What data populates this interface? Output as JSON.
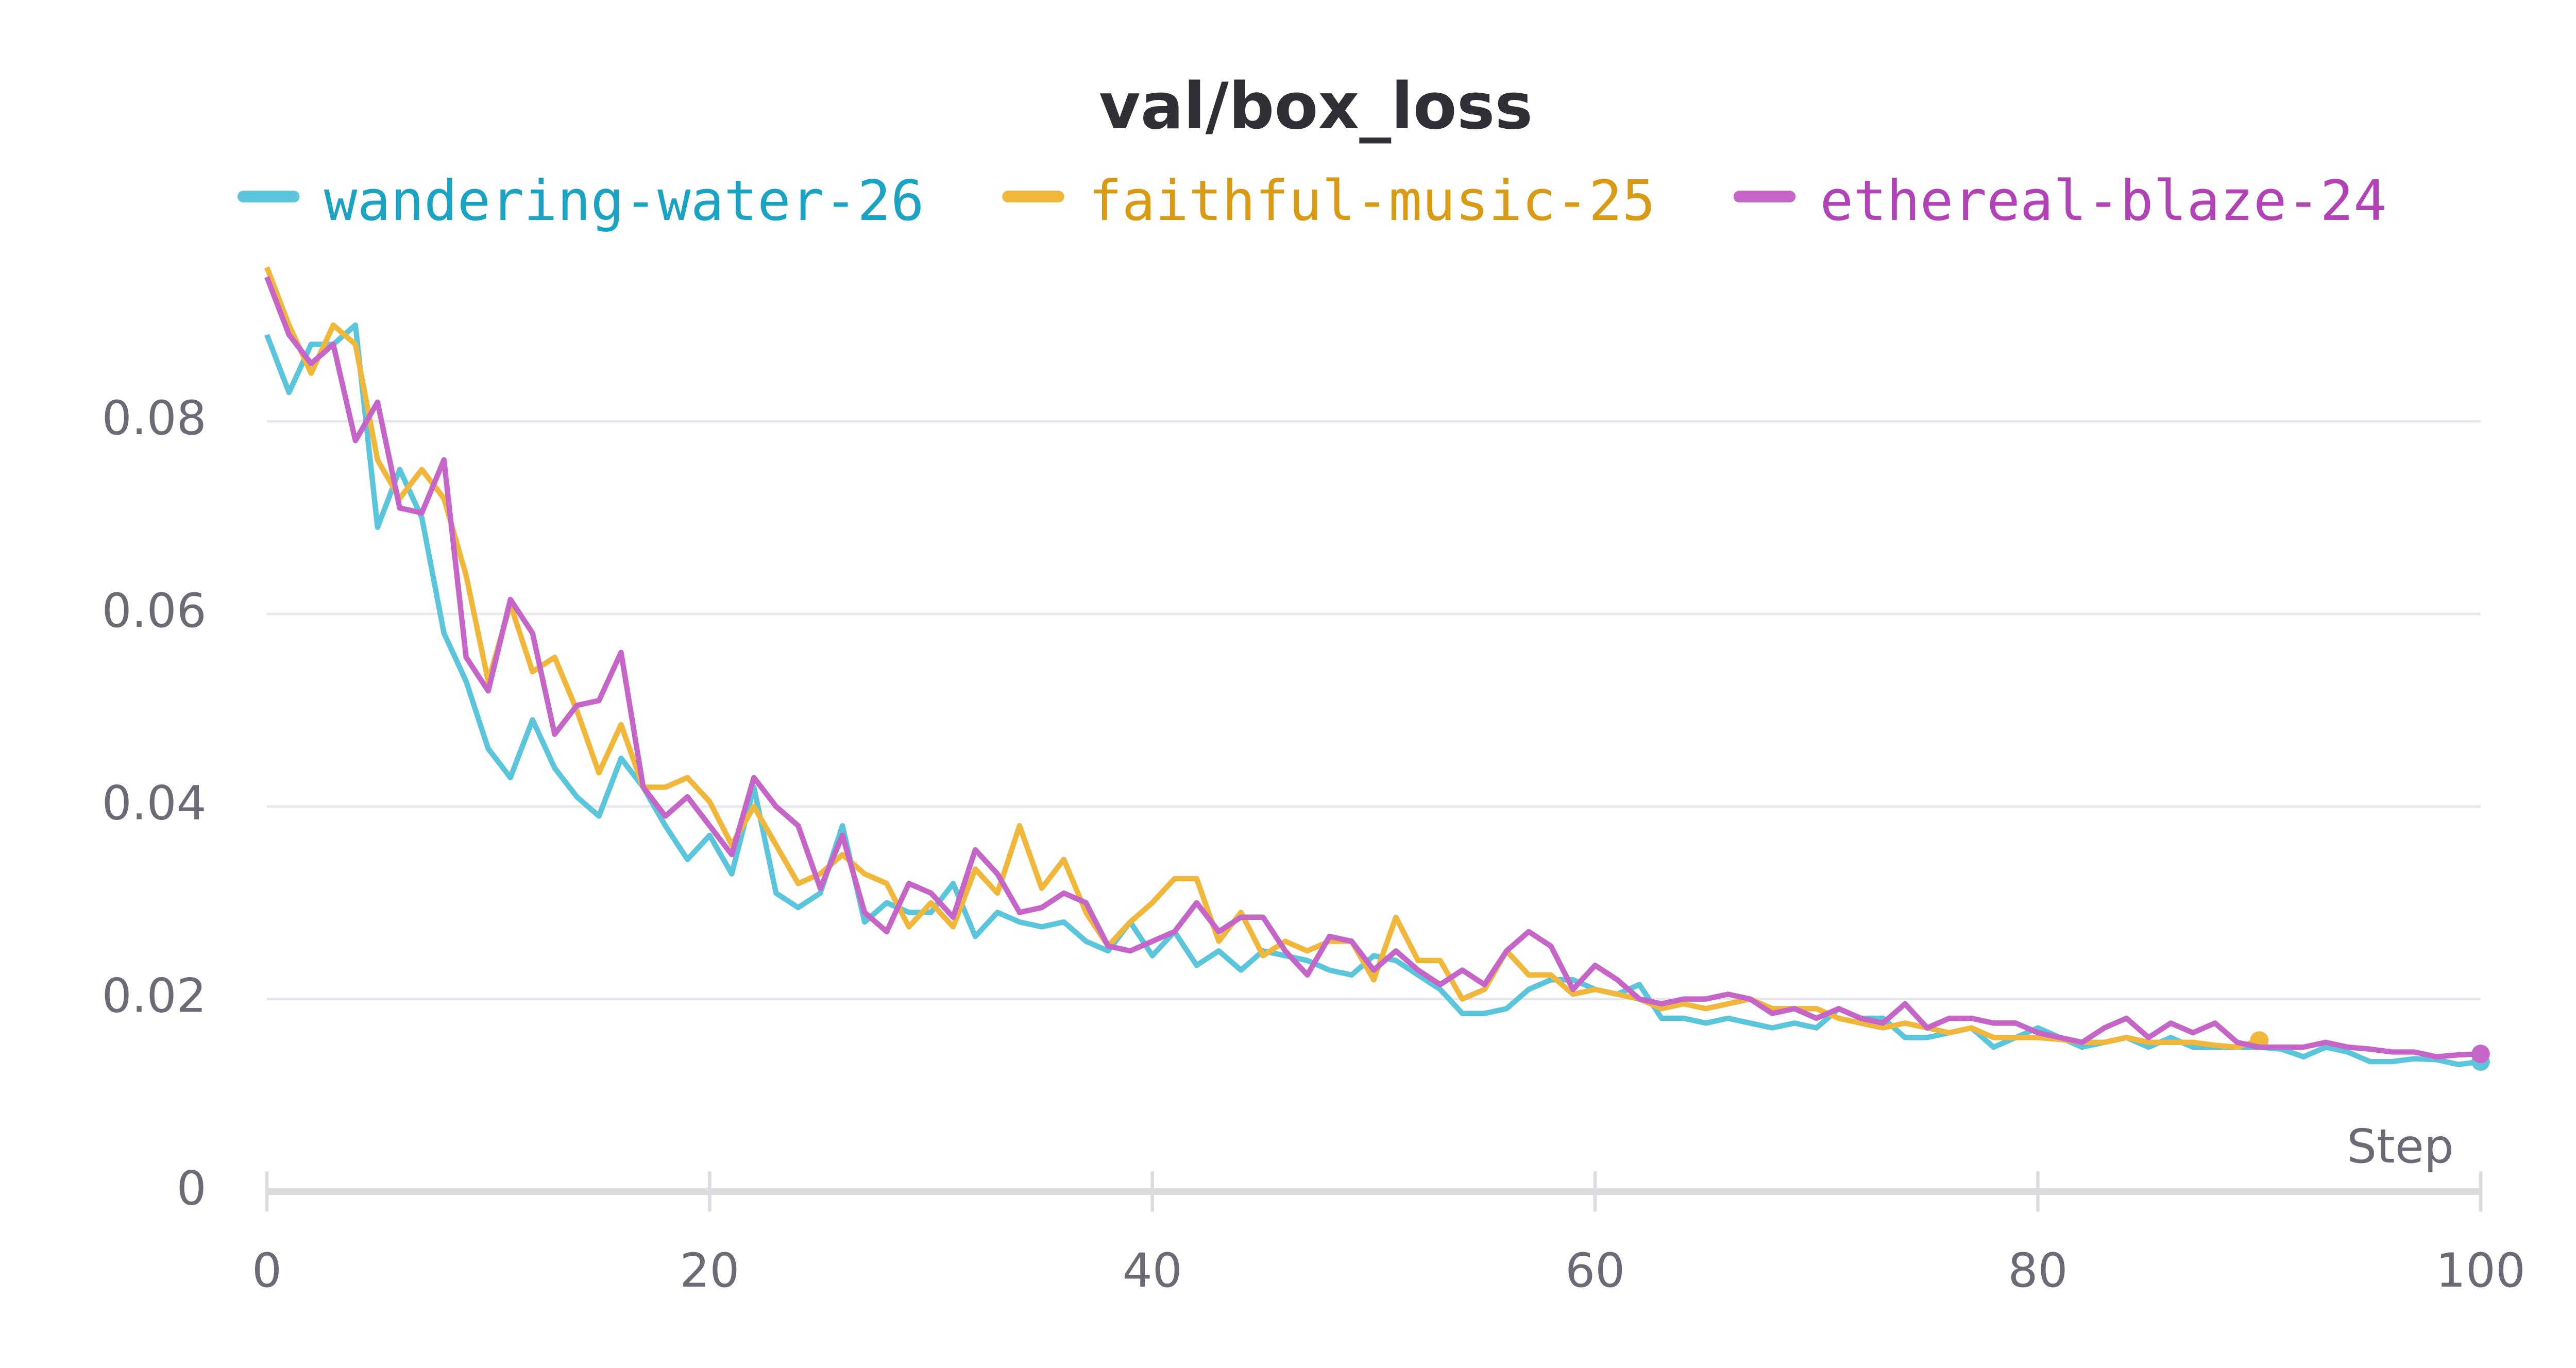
{
  "chart_data": {
    "type": "line",
    "title": "val/box_loss",
    "x_label": "Step",
    "x": [
      0,
      1,
      2,
      3,
      4,
      5,
      6,
      7,
      8,
      9,
      10,
      11,
      12,
      13,
      14,
      15,
      16,
      17,
      18,
      19,
      20,
      21,
      22,
      23,
      24,
      25,
      26,
      27,
      28,
      29,
      30,
      31,
      32,
      33,
      34,
      35,
      36,
      37,
      38,
      39,
      40,
      41,
      42,
      43,
      44,
      45,
      46,
      47,
      48,
      49,
      50,
      51,
      52,
      53,
      54,
      55,
      56,
      57,
      58,
      59,
      60,
      61,
      62,
      63,
      64,
      65,
      66,
      67,
      68,
      69,
      70,
      71,
      72,
      73,
      74,
      75,
      76,
      77,
      78,
      79,
      80,
      81,
      82,
      83,
      84,
      85,
      86,
      87,
      88,
      89,
      90,
      91,
      92,
      93,
      94,
      95,
      96,
      97,
      98,
      99,
      100
    ],
    "xlim": [
      0,
      100
    ],
    "xticks": [
      0,
      20,
      40,
      60,
      80,
      100
    ],
    "ylim": [
      0,
      0.0976
    ],
    "yticks": [
      0,
      0.02,
      0.04,
      0.06,
      0.08
    ],
    "grid": true,
    "series": [
      {
        "name": "wandering-water-26",
        "color": "#5bc5db",
        "label_color": "#1ba3c4",
        "values": [
          0.089,
          0.083,
          0.088,
          0.088,
          0.09,
          0.069,
          0.075,
          0.07,
          0.058,
          0.053,
          0.046,
          0.043,
          0.049,
          0.044,
          0.041,
          0.039,
          0.045,
          0.042,
          0.038,
          0.0345,
          0.037,
          0.033,
          0.042,
          0.031,
          0.0295,
          0.031,
          0.038,
          0.028,
          0.03,
          0.029,
          0.029,
          0.032,
          0.0265,
          0.029,
          0.028,
          0.0275,
          0.028,
          0.026,
          0.025,
          0.028,
          0.0245,
          0.027,
          0.0235,
          0.025,
          0.023,
          0.025,
          0.0245,
          0.024,
          0.023,
          0.0225,
          0.0245,
          0.024,
          0.0225,
          0.021,
          0.0185,
          0.0185,
          0.019,
          0.021,
          0.022,
          0.022,
          0.021,
          0.0205,
          0.0215,
          0.018,
          0.018,
          0.0175,
          0.018,
          0.0175,
          0.017,
          0.0175,
          0.017,
          0.019,
          0.018,
          0.018,
          0.016,
          0.016,
          0.0165,
          0.017,
          0.015,
          0.016,
          0.017,
          0.016,
          0.015,
          0.0155,
          0.016,
          0.015,
          0.016,
          0.015,
          0.015,
          0.015,
          0.015,
          0.0148,
          0.014,
          0.015,
          0.0145,
          0.0135,
          0.0135,
          0.0138,
          0.0137,
          0.0132,
          0.0135
        ]
      },
      {
        "name": "faithful-music-25",
        "color": "#f0b73a",
        "label_color": "#d99a14",
        "values": [
          0.096,
          0.09,
          0.085,
          0.09,
          0.088,
          0.076,
          0.072,
          0.075,
          0.072,
          0.064,
          0.053,
          0.061,
          0.054,
          0.0555,
          0.05,
          0.0435,
          0.0485,
          0.042,
          0.042,
          0.043,
          0.0405,
          0.036,
          0.04,
          0.036,
          0.032,
          0.033,
          0.035,
          0.033,
          0.032,
          0.0275,
          0.03,
          0.0275,
          0.0335,
          0.031,
          0.038,
          0.0315,
          0.0345,
          0.029,
          0.0255,
          0.028,
          0.03,
          0.0325,
          0.0325,
          0.026,
          0.029,
          0.0245,
          0.026,
          0.025,
          0.026,
          0.026,
          0.022,
          0.0285,
          0.024,
          0.024,
          0.02,
          0.021,
          0.025,
          0.0225,
          0.0225,
          0.0205,
          0.021,
          0.0205,
          0.02,
          0.019,
          0.0195,
          0.019,
          0.0195,
          0.02,
          0.019,
          0.019,
          0.019,
          0.018,
          0.0175,
          0.017,
          0.0175,
          0.017,
          0.0165,
          0.017,
          0.016,
          0.016,
          0.016,
          0.0158,
          0.0155,
          0.0155,
          0.016,
          0.0155,
          0.0155,
          0.0155,
          0.0152,
          0.015,
          0.0157,
          null,
          null,
          null,
          null,
          null,
          null,
          null,
          null,
          null,
          null
        ]
      },
      {
        "name": "ethereal-blaze-24",
        "color": "#c565c7",
        "label_color": "#b243b6",
        "values": [
          0.095,
          0.089,
          0.086,
          0.088,
          0.078,
          0.082,
          0.071,
          0.0705,
          0.076,
          0.0555,
          0.052,
          0.0615,
          0.058,
          0.0475,
          0.0505,
          0.051,
          0.056,
          0.042,
          0.039,
          0.041,
          0.038,
          0.035,
          0.043,
          0.04,
          0.038,
          0.0315,
          0.037,
          0.029,
          0.027,
          0.032,
          0.031,
          0.0285,
          0.0355,
          0.033,
          0.029,
          0.0295,
          0.031,
          0.03,
          0.0255,
          0.025,
          0.026,
          0.027,
          0.03,
          0.027,
          0.0285,
          0.0285,
          0.025,
          0.0225,
          0.0265,
          0.026,
          0.023,
          0.025,
          0.023,
          0.0215,
          0.023,
          0.0215,
          0.025,
          0.027,
          0.0255,
          0.021,
          0.0235,
          0.022,
          0.02,
          0.0195,
          0.02,
          0.02,
          0.0205,
          0.02,
          0.0185,
          0.019,
          0.018,
          0.019,
          0.018,
          0.0175,
          0.0195,
          0.017,
          0.018,
          0.018,
          0.0175,
          0.0175,
          0.0165,
          0.016,
          0.0155,
          0.017,
          0.018,
          0.016,
          0.0175,
          0.0165,
          0.0175,
          0.0155,
          0.015,
          0.015,
          0.015,
          0.0155,
          0.015,
          0.0148,
          0.0145,
          0.0145,
          0.014,
          0.0142,
          0.0143
        ]
      }
    ]
  }
}
